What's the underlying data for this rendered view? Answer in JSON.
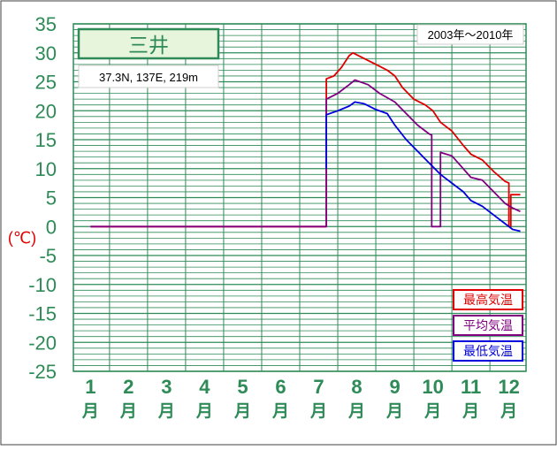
{
  "chart_data": {
    "type": "line",
    "title": "三井",
    "subtitle": "37.3N,  137E,  219m",
    "period": "2003年～2010年",
    "ylabel": "(℃)",
    "ylim": [
      -25,
      35
    ],
    "y_ticks": [
      "35",
      "30",
      "25",
      "20",
      "15",
      "10",
      "5",
      "0",
      "-5",
      "-10",
      "-15",
      "-20",
      "-25"
    ],
    "x_month_numbers": [
      "1",
      "2",
      "3",
      "4",
      "5",
      "6",
      "7",
      "8",
      "9",
      "10",
      "11",
      "12"
    ],
    "x_month_unit": "月",
    "grid": true,
    "legend_position": "bottom-right",
    "colors": {
      "frame": "#2e8b57",
      "grid": "#2e8b57",
      "title_box": "#e6f5dc",
      "max": "#e00000",
      "avg": "#800080",
      "min": "#0000dd",
      "axis_text": "#2e8b57",
      "ylabel_text": "#e00000"
    },
    "series": [
      {
        "name": "最高気温",
        "key": "max",
        "points": [
          [
            1.0,
            0
          ],
          [
            7.2,
            0
          ],
          [
            7.2,
            25.5
          ],
          [
            7.4,
            26
          ],
          [
            7.6,
            27.5
          ],
          [
            7.8,
            29.5
          ],
          [
            7.9,
            30
          ],
          [
            8.2,
            29
          ],
          [
            8.5,
            28
          ],
          [
            8.8,
            27
          ],
          [
            9.0,
            26
          ],
          [
            9.2,
            24
          ],
          [
            9.5,
            22
          ],
          [
            9.8,
            21
          ],
          [
            10.0,
            20
          ],
          [
            10.2,
            18
          ],
          [
            10.5,
            16.5
          ],
          [
            10.8,
            14
          ],
          [
            11.0,
            12.5
          ],
          [
            11.3,
            11.5
          ],
          [
            11.6,
            9.5
          ],
          [
            11.9,
            7.8
          ],
          [
            12.0,
            7.5
          ],
          [
            12.0,
            0
          ],
          [
            12.05,
            0
          ],
          [
            12.05,
            5.5
          ],
          [
            12.3,
            5.5
          ]
        ]
      },
      {
        "name": "平均気温",
        "key": "avg",
        "points": [
          [
            1.0,
            0
          ],
          [
            7.2,
            0
          ],
          [
            7.2,
            22
          ],
          [
            7.5,
            23
          ],
          [
            7.8,
            24.5
          ],
          [
            7.95,
            25.3
          ],
          [
            8.3,
            24.5
          ],
          [
            8.6,
            23
          ],
          [
            9.0,
            21.5
          ],
          [
            9.3,
            19.5
          ],
          [
            9.6,
            17.5
          ],
          [
            9.9,
            16
          ],
          [
            9.97,
            15.8
          ],
          [
            9.97,
            0
          ],
          [
            10.2,
            0
          ],
          [
            10.2,
            12.8
          ],
          [
            10.5,
            12.2
          ],
          [
            10.8,
            10
          ],
          [
            11.0,
            8.5
          ],
          [
            11.3,
            8
          ],
          [
            11.6,
            6
          ],
          [
            11.9,
            4
          ],
          [
            12.1,
            3.2
          ],
          [
            12.3,
            2.6
          ]
        ]
      },
      {
        "name": "最低気温",
        "key": "min",
        "points": [
          [
            7.2,
            10
          ],
          [
            7.2,
            19.3
          ],
          [
            7.5,
            20
          ],
          [
            7.8,
            20.8
          ],
          [
            7.95,
            21.5
          ],
          [
            8.2,
            21.2
          ],
          [
            8.5,
            20.2
          ],
          [
            8.8,
            19.5
          ],
          [
            9.0,
            17.5
          ],
          [
            9.3,
            15
          ],
          [
            9.6,
            13
          ],
          [
            9.9,
            11
          ],
          [
            10.2,
            9
          ],
          [
            10.5,
            7.5
          ],
          [
            10.8,
            6
          ],
          [
            11.0,
            4.5
          ],
          [
            11.3,
            3.5
          ],
          [
            11.6,
            2
          ],
          [
            11.9,
            0.5
          ],
          [
            12.1,
            -0.5
          ],
          [
            12.3,
            -0.8
          ]
        ]
      }
    ]
  }
}
